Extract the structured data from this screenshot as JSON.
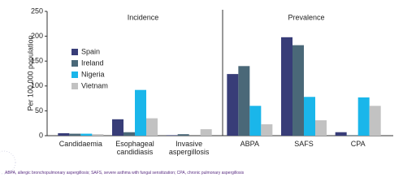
{
  "chart_data": {
    "type": "bar",
    "y_label": "Per 100,000 population",
    "section_labels": [
      "Incidence",
      "Prevalence"
    ],
    "categories": [
      "Candidaemia",
      "Esophageal candidiasis",
      "Invasive aspergillosis",
      "ABPA",
      "SAFS",
      "CPA"
    ],
    "series": [
      {
        "name": "Spain",
        "color": "#383d78",
        "values": [
          5,
          33,
          1,
          124,
          198,
          7
        ]
      },
      {
        "name": "Ireland",
        "color": "#4a6878",
        "values": [
          4,
          7,
          3,
          140,
          182,
          1
        ]
      },
      {
        "name": "Nigeria",
        "color": "#1ab6ea",
        "values": [
          4,
          92,
          0,
          60,
          78,
          77
        ]
      },
      {
        "name": "Vietnam",
        "color": "#c2c2c2",
        "values": [
          3,
          35,
          13,
          23,
          31,
          60
        ]
      }
    ],
    "ylim": [
      0,
      250
    ],
    "yticks": [
      0,
      50,
      100,
      150,
      200,
      250
    ],
    "grid": false,
    "footnote": "ABPA, allergic bronchopulmonary aspergillosis; SAFS, severe asthma with fungal sensitization; CPA, chronic pulmonary aspergillosis"
  }
}
